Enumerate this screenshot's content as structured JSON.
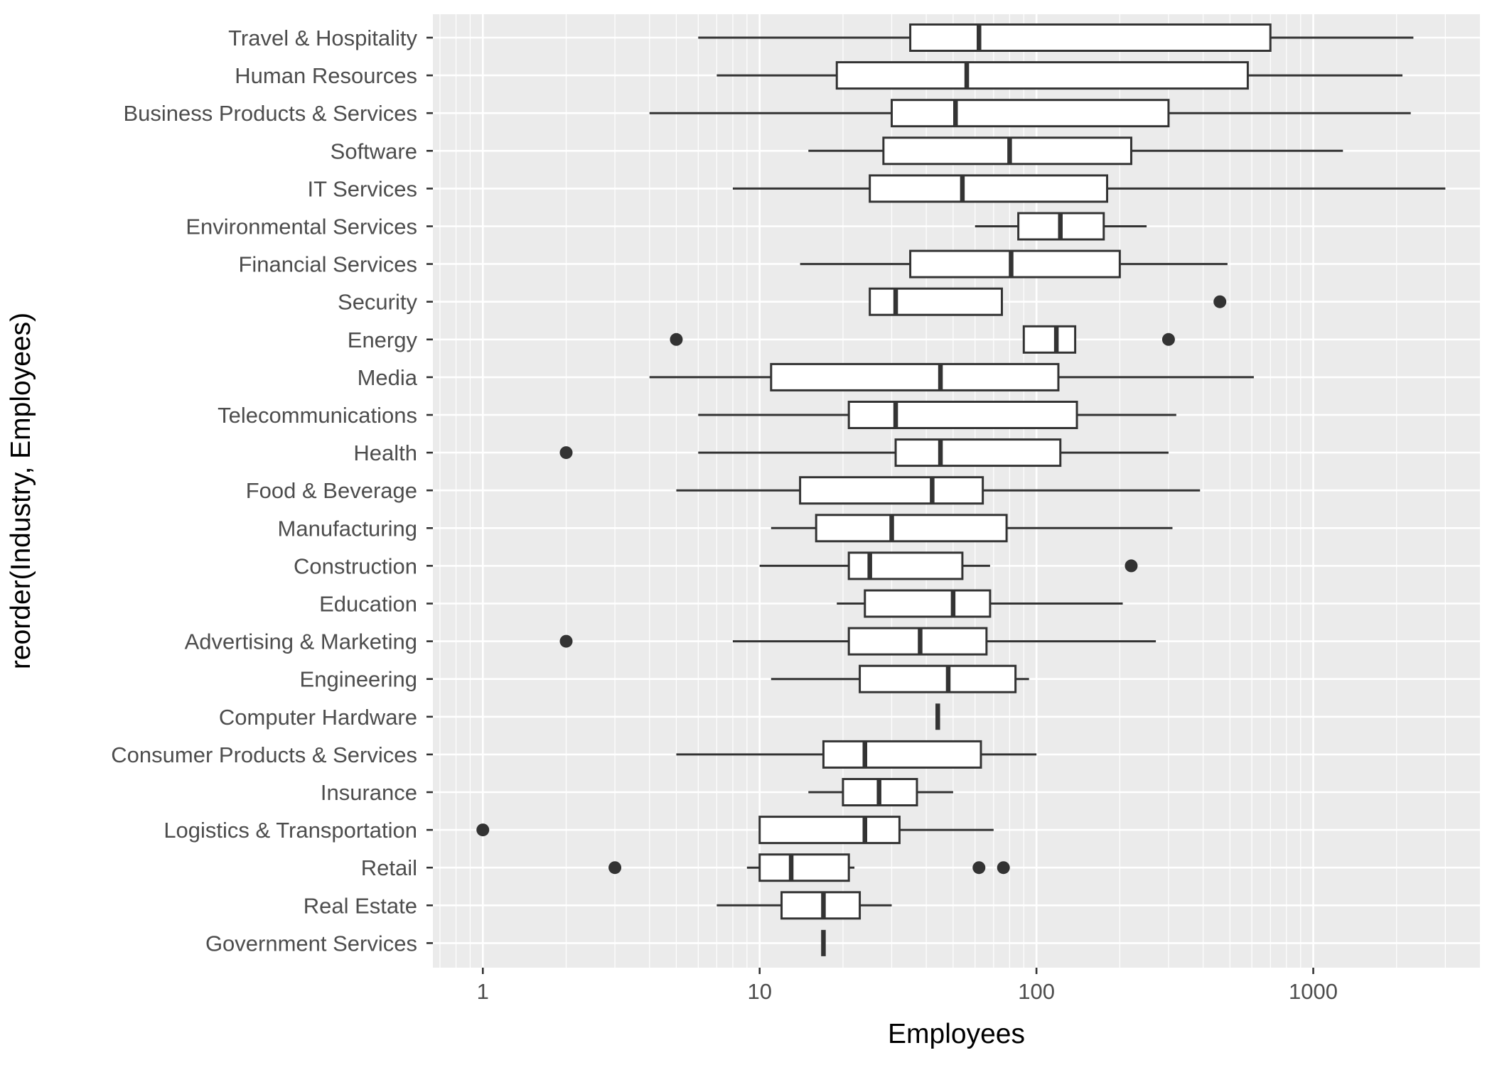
{
  "colors": {
    "panel_background": "#EBEBEB",
    "grid_major": "#FFFFFF",
    "box_fill": "#FFFFFF",
    "box_stroke": "#333333",
    "outlier": "#333333",
    "tick_label": "#4D4D4D",
    "axis_title": "#000000"
  },
  "chart_data": {
    "type": "boxplot",
    "orientation": "horizontal",
    "xlabel": "Employees",
    "ylabel": "reorder(Industry, Employees)",
    "x_scale": "log10",
    "xlim": [
      0.66,
      4000
    ],
    "x_ticks": [
      1,
      10,
      100,
      1000
    ],
    "x_tick_labels": [
      "1",
      "10",
      "100",
      "1000"
    ],
    "grid": true,
    "legend": "none",
    "categories": [
      {
        "name": "Travel & Hospitality",
        "whisker_low": 6,
        "q1": 35,
        "median": 62,
        "q3": 700,
        "whisker_high": 2300,
        "outliers": []
      },
      {
        "name": "Human Resources",
        "whisker_low": 7,
        "q1": 19,
        "median": 56,
        "q3": 580,
        "whisker_high": 2100,
        "outliers": []
      },
      {
        "name": "Business Products & Services",
        "whisker_low": 4,
        "q1": 30,
        "median": 51,
        "q3": 300,
        "whisker_high": 2250,
        "outliers": []
      },
      {
        "name": "Software",
        "whisker_low": 15,
        "q1": 28,
        "median": 80,
        "q3": 220,
        "whisker_high": 1280,
        "outliers": []
      },
      {
        "name": "IT Services",
        "whisker_low": 8,
        "q1": 25,
        "median": 54,
        "q3": 180,
        "whisker_high": 3000,
        "outliers": []
      },
      {
        "name": "Environmental Services",
        "whisker_low": 60,
        "q1": 86,
        "median": 122,
        "q3": 175,
        "whisker_high": 250,
        "outliers": []
      },
      {
        "name": "Financial Services",
        "whisker_low": 14,
        "q1": 35,
        "median": 81,
        "q3": 200,
        "whisker_high": 490,
        "outliers": []
      },
      {
        "name": "Security",
        "whisker_low": 25,
        "q1": 25,
        "median": 31,
        "q3": 75,
        "whisker_high": 75,
        "outliers": [
          460
        ]
      },
      {
        "name": "Energy",
        "whisker_low": 90,
        "q1": 90,
        "median": 118,
        "q3": 138,
        "whisker_high": 138,
        "outliers": [
          5,
          300
        ]
      },
      {
        "name": "Media",
        "whisker_low": 4,
        "q1": 11,
        "median": 45,
        "q3": 120,
        "whisker_high": 610,
        "outliers": []
      },
      {
        "name": "Telecommunications",
        "whisker_low": 6,
        "q1": 21,
        "median": 31,
        "q3": 140,
        "whisker_high": 320,
        "outliers": []
      },
      {
        "name": "Health",
        "whisker_low": 6,
        "q1": 31,
        "median": 45,
        "q3": 122,
        "whisker_high": 300,
        "outliers": [
          2
        ]
      },
      {
        "name": "Food & Beverage",
        "whisker_low": 5,
        "q1": 14,
        "median": 42,
        "q3": 64,
        "whisker_high": 390,
        "outliers": []
      },
      {
        "name": "Manufacturing",
        "whisker_low": 11,
        "q1": 16,
        "median": 30,
        "q3": 78,
        "whisker_high": 310,
        "outliers": []
      },
      {
        "name": "Construction",
        "whisker_low": 10,
        "q1": 21,
        "median": 25,
        "q3": 54,
        "whisker_high": 68,
        "outliers": [
          220
        ]
      },
      {
        "name": "Education",
        "whisker_low": 19,
        "q1": 24,
        "median": 50,
        "q3": 68,
        "whisker_high": 205,
        "outliers": []
      },
      {
        "name": "Advertising & Marketing",
        "whisker_low": 8,
        "q1": 21,
        "median": 38,
        "q3": 66,
        "whisker_high": 270,
        "outliers": [
          2
        ]
      },
      {
        "name": "Engineering",
        "whisker_low": 11,
        "q1": 23,
        "median": 48,
        "q3": 84,
        "whisker_high": 94,
        "outliers": []
      },
      {
        "name": "Computer Hardware",
        "whisker_low": 44,
        "q1": 44,
        "median": 44,
        "q3": 44,
        "whisker_high": 44,
        "outliers": []
      },
      {
        "name": "Consumer Products & Services",
        "whisker_low": 5,
        "q1": 17,
        "median": 24,
        "q3": 63,
        "whisker_high": 100,
        "outliers": []
      },
      {
        "name": "Insurance",
        "whisker_low": 15,
        "q1": 20,
        "median": 27,
        "q3": 37,
        "whisker_high": 50,
        "outliers": []
      },
      {
        "name": "Logistics & Transportation",
        "whisker_low": 10,
        "q1": 10,
        "median": 24,
        "q3": 32,
        "whisker_high": 70,
        "outliers": [
          1
        ]
      },
      {
        "name": "Retail",
        "whisker_low": 9,
        "q1": 10,
        "median": 13,
        "q3": 21,
        "whisker_high": 22,
        "outliers": [
          3,
          62,
          76
        ]
      },
      {
        "name": "Real Estate",
        "whisker_low": 7,
        "q1": 12,
        "median": 17,
        "q3": 23,
        "whisker_high": 30,
        "outliers": []
      },
      {
        "name": "Government Services",
        "whisker_low": 17,
        "q1": 17,
        "median": 17,
        "q3": 17,
        "whisker_high": 17,
        "outliers": []
      }
    ]
  }
}
